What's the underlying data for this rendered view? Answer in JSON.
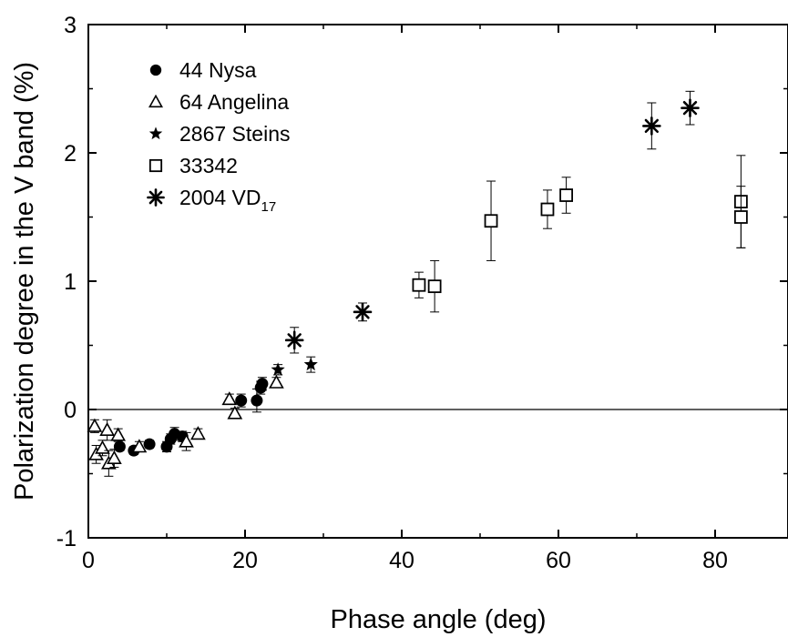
{
  "chart_data": {
    "type": "scatter",
    "title": "",
    "xlabel": "Phase angle (deg)",
    "ylabel": "Polarization degree in the V band (%)",
    "xlim": [
      0,
      90
    ],
    "ylim": [
      -1,
      3
    ],
    "xticks": [
      "0",
      "20",
      "40",
      "60",
      "80"
    ],
    "yticks": [
      "-1",
      "0",
      "1",
      "2",
      "3"
    ],
    "zero_line": true,
    "grid": false,
    "legend_position": "top-left",
    "series": [
      {
        "name": "44 Nysa",
        "subscript": "",
        "marker": "filled-circle",
        "points": [
          {
            "x": 4.0,
            "y": -0.29,
            "err": 0.03
          },
          {
            "x": 5.8,
            "y": -0.32,
            "err": 0.03
          },
          {
            "x": 7.8,
            "y": -0.27,
            "err": 0.03
          },
          {
            "x": 10.0,
            "y": -0.29,
            "err": 0.04
          },
          {
            "x": 10.5,
            "y": -0.23,
            "err": 0.04
          },
          {
            "x": 11.0,
            "y": -0.19,
            "err": 0.05
          },
          {
            "x": 12.0,
            "y": -0.21,
            "err": 0.04
          },
          {
            "x": 19.5,
            "y": 0.07,
            "err": 0.05
          },
          {
            "x": 21.5,
            "y": 0.07,
            "err": 0.09
          },
          {
            "x": 22.0,
            "y": 0.17,
            "err": 0.05
          },
          {
            "x": 22.2,
            "y": 0.2,
            "err": 0.05
          }
        ]
      },
      {
        "name": "64 Angelina",
        "subscript": "",
        "marker": "open-triangle",
        "points": [
          {
            "x": 0.8,
            "y": -0.13,
            "err": 0.05
          },
          {
            "x": 1.0,
            "y": -0.35,
            "err": 0.07
          },
          {
            "x": 1.8,
            "y": -0.3,
            "err": 0.06
          },
          {
            "x": 2.4,
            "y": -0.16,
            "err": 0.08
          },
          {
            "x": 2.6,
            "y": -0.42,
            "err": 0.1
          },
          {
            "x": 3.3,
            "y": -0.38,
            "err": 0.07
          },
          {
            "x": 3.8,
            "y": -0.2,
            "err": 0.05
          },
          {
            "x": 6.5,
            "y": -0.29,
            "err": 0.04
          },
          {
            "x": 12.5,
            "y": -0.25,
            "err": 0.07
          },
          {
            "x": 14.0,
            "y": -0.19,
            "err": 0.04
          },
          {
            "x": 18.0,
            "y": 0.08,
            "err": 0.04
          },
          {
            "x": 18.7,
            "y": -0.03,
            "err": 0.04
          },
          {
            "x": 24.0,
            "y": 0.21,
            "err": 0.04
          }
        ]
      },
      {
        "name": "2867 Steins",
        "subscript": "",
        "marker": "filled-star",
        "points": [
          {
            "x": 24.2,
            "y": 0.31,
            "err": 0.04
          },
          {
            "x": 28.4,
            "y": 0.35,
            "err": 0.06
          }
        ]
      },
      {
        "name": "33342",
        "subscript": "",
        "marker": "open-square",
        "points": [
          {
            "x": 42.2,
            "y": 0.97,
            "err": 0.1
          },
          {
            "x": 44.2,
            "y": 0.96,
            "err": 0.2
          },
          {
            "x": 51.4,
            "y": 1.47,
            "err": 0.31
          },
          {
            "x": 58.6,
            "y": 1.56,
            "err": 0.15
          },
          {
            "x": 61.0,
            "y": 1.67,
            "err": 0.14
          },
          {
            "x": 83.3,
            "y": 1.62,
            "err": 0.36
          },
          {
            "x": 83.3,
            "y": 1.5,
            "err": 0.24
          }
        ]
      },
      {
        "name": "2004 VD",
        "subscript": "17",
        "marker": "asterisk",
        "points": [
          {
            "x": 26.3,
            "y": 0.54,
            "err": 0.1
          },
          {
            "x": 35.0,
            "y": 0.76,
            "err": 0.07
          },
          {
            "x": 71.9,
            "y": 2.21,
            "err": 0.18
          },
          {
            "x": 76.8,
            "y": 2.35,
            "err": 0.13
          }
        ]
      }
    ]
  }
}
